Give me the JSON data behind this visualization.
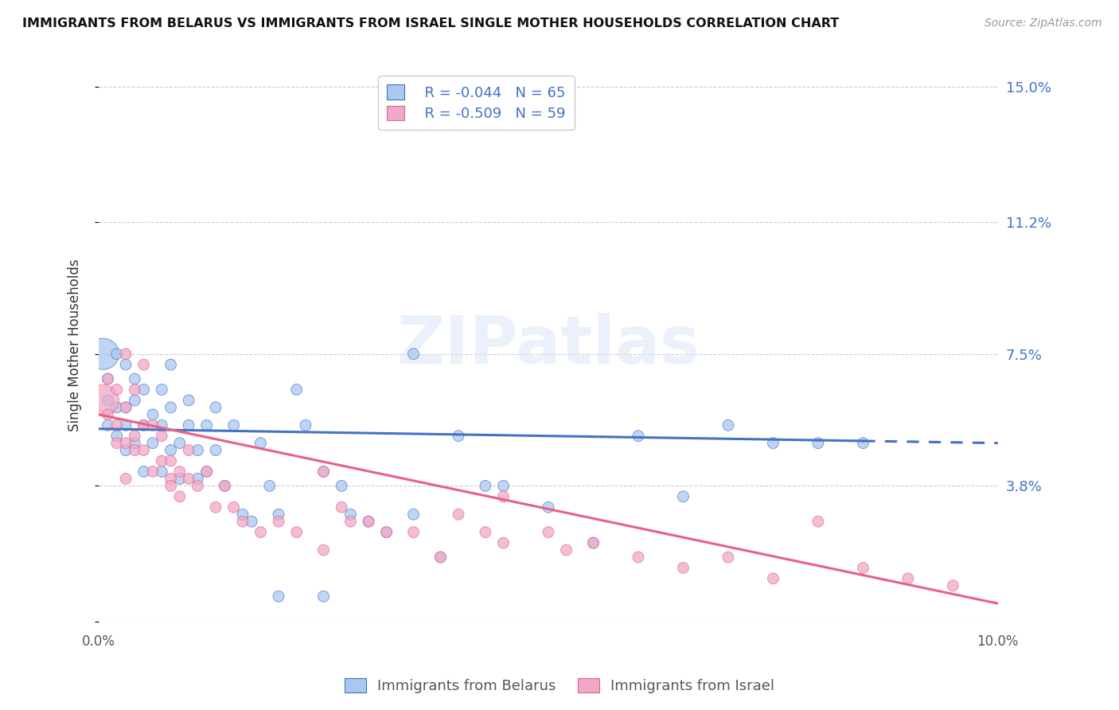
{
  "title": "IMMIGRANTS FROM BELARUS VS IMMIGRANTS FROM ISRAEL SINGLE MOTHER HOUSEHOLDS CORRELATION CHART",
  "source": "Source: ZipAtlas.com",
  "ylabel": "Single Mother Households",
  "yticks": [
    0.0,
    0.038,
    0.075,
    0.112,
    0.15
  ],
  "ytick_labels": [
    "",
    "3.8%",
    "7.5%",
    "11.2%",
    "15.0%"
  ],
  "xlim": [
    0.0,
    0.1
  ],
  "ylim": [
    0.0,
    0.155
  ],
  "legend_R1": "R = -0.044",
  "legend_N1": "N = 65",
  "legend_R2": "R = -0.509",
  "legend_N2": "N = 59",
  "color_belarus": "#a8c8f0",
  "color_israel": "#f0a8c8",
  "color_line_belarus": "#4472c4",
  "color_line_israel": "#e8608a",
  "color_text_blue": "#4472c4",
  "belarus_line_y0": 0.054,
  "belarus_line_y1": 0.05,
  "israel_line_y0": 0.058,
  "israel_line_y1": 0.005,
  "belarus_x": [
    0.0005,
    0.001,
    0.001,
    0.001,
    0.002,
    0.002,
    0.002,
    0.003,
    0.003,
    0.003,
    0.003,
    0.004,
    0.004,
    0.004,
    0.005,
    0.005,
    0.005,
    0.006,
    0.006,
    0.007,
    0.007,
    0.007,
    0.008,
    0.008,
    0.008,
    0.009,
    0.009,
    0.01,
    0.01,
    0.011,
    0.011,
    0.012,
    0.012,
    0.013,
    0.013,
    0.014,
    0.015,
    0.016,
    0.017,
    0.018,
    0.019,
    0.02,
    0.022,
    0.023,
    0.025,
    0.027,
    0.028,
    0.03,
    0.032,
    0.035,
    0.038,
    0.04,
    0.043,
    0.045,
    0.05,
    0.055,
    0.06,
    0.065,
    0.07,
    0.075,
    0.08,
    0.035,
    0.025,
    0.02,
    0.085
  ],
  "belarus_y": [
    0.075,
    0.062,
    0.055,
    0.068,
    0.052,
    0.06,
    0.075,
    0.055,
    0.06,
    0.048,
    0.072,
    0.05,
    0.062,
    0.068,
    0.055,
    0.065,
    0.042,
    0.058,
    0.05,
    0.042,
    0.065,
    0.055,
    0.048,
    0.06,
    0.072,
    0.05,
    0.04,
    0.055,
    0.062,
    0.048,
    0.04,
    0.055,
    0.042,
    0.06,
    0.048,
    0.038,
    0.055,
    0.03,
    0.028,
    0.05,
    0.038,
    0.03,
    0.065,
    0.055,
    0.042,
    0.038,
    0.03,
    0.028,
    0.025,
    0.03,
    0.018,
    0.052,
    0.038,
    0.038,
    0.032,
    0.022,
    0.052,
    0.035,
    0.055,
    0.05,
    0.05,
    0.075,
    0.007,
    0.007,
    0.05
  ],
  "belarus_size": [
    800,
    100,
    100,
    100,
    100,
    100,
    100,
    100,
    100,
    100,
    100,
    100,
    100,
    100,
    100,
    100,
    100,
    100,
    100,
    100,
    100,
    100,
    100,
    100,
    100,
    100,
    100,
    100,
    100,
    100,
    100,
    100,
    100,
    100,
    100,
    100,
    100,
    100,
    100,
    100,
    100,
    100,
    100,
    100,
    100,
    100,
    100,
    100,
    100,
    100,
    100,
    100,
    100,
    100,
    100,
    100,
    100,
    100,
    100,
    100,
    100,
    100,
    100,
    100,
    100
  ],
  "israel_x": [
    0.0005,
    0.001,
    0.001,
    0.002,
    0.002,
    0.002,
    0.003,
    0.003,
    0.003,
    0.004,
    0.004,
    0.004,
    0.005,
    0.005,
    0.006,
    0.006,
    0.007,
    0.007,
    0.008,
    0.008,
    0.009,
    0.009,
    0.01,
    0.01,
    0.011,
    0.012,
    0.013,
    0.014,
    0.015,
    0.016,
    0.018,
    0.02,
    0.022,
    0.025,
    0.027,
    0.028,
    0.03,
    0.032,
    0.035,
    0.038,
    0.04,
    0.043,
    0.045,
    0.05,
    0.052,
    0.055,
    0.06,
    0.065,
    0.07,
    0.075,
    0.08,
    0.085,
    0.09,
    0.095,
    0.003,
    0.005,
    0.008,
    0.025,
    0.045
  ],
  "israel_y": [
    0.062,
    0.058,
    0.068,
    0.055,
    0.065,
    0.05,
    0.06,
    0.05,
    0.04,
    0.052,
    0.048,
    0.065,
    0.055,
    0.048,
    0.042,
    0.055,
    0.045,
    0.052,
    0.04,
    0.038,
    0.042,
    0.035,
    0.04,
    0.048,
    0.038,
    0.042,
    0.032,
    0.038,
    0.032,
    0.028,
    0.025,
    0.028,
    0.025,
    0.02,
    0.032,
    0.028,
    0.028,
    0.025,
    0.025,
    0.018,
    0.03,
    0.025,
    0.022,
    0.025,
    0.02,
    0.022,
    0.018,
    0.015,
    0.018,
    0.012,
    0.028,
    0.015,
    0.012,
    0.01,
    0.075,
    0.072,
    0.045,
    0.042,
    0.035
  ],
  "israel_size": [
    800,
    100,
    100,
    100,
    100,
    100,
    100,
    100,
    100,
    100,
    100,
    100,
    100,
    100,
    100,
    100,
    100,
    100,
    100,
    100,
    100,
    100,
    100,
    100,
    100,
    100,
    100,
    100,
    100,
    100,
    100,
    100,
    100,
    100,
    100,
    100,
    100,
    100,
    100,
    100,
    100,
    100,
    100,
    100,
    100,
    100,
    100,
    100,
    100,
    100,
    100,
    100,
    100,
    100,
    100,
    100,
    100,
    100,
    100
  ]
}
